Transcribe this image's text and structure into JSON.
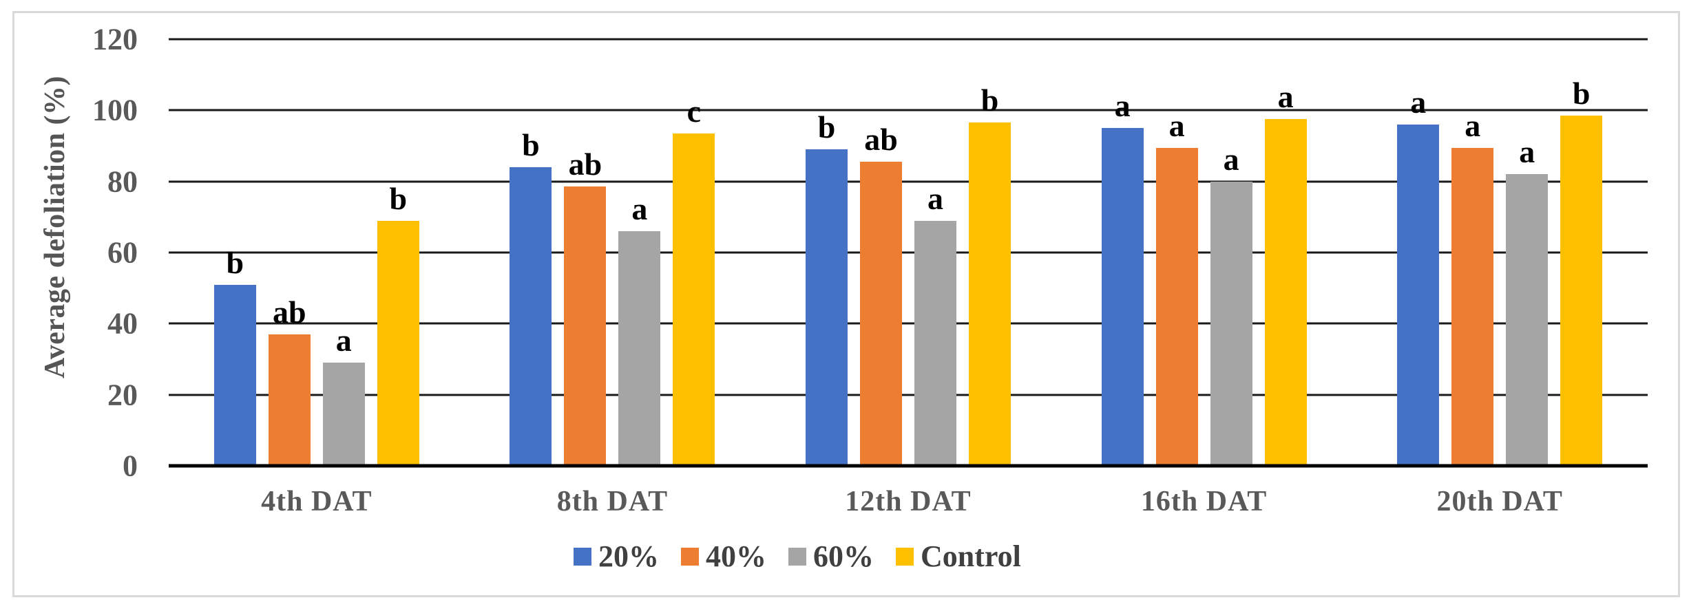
{
  "chart_data": {
    "type": "bar",
    "title": "",
    "ylabel": "Average defoliation (%)",
    "xlabel": "",
    "ylim": [
      0,
      120
    ],
    "yticks": [
      0,
      20,
      40,
      60,
      80,
      100,
      120
    ],
    "grid": "horizontal",
    "legend_position": "bottom-center",
    "categories": [
      "4th DAT",
      "8th DAT",
      "12th DAT",
      "16th DAT",
      "20th DAT"
    ],
    "series": [
      {
        "name": "20%",
        "color": "#4472C4",
        "values": [
          51,
          84,
          89,
          95,
          96
        ],
        "letters": [
          "b",
          "b",
          "b",
          "a",
          "a"
        ]
      },
      {
        "name": "40%",
        "color": "#ED7D31",
        "values": [
          37,
          78.5,
          85.5,
          89.5,
          89.5
        ],
        "letters": [
          "ab",
          "ab",
          "ab",
          "a",
          "a"
        ]
      },
      {
        "name": "60%",
        "color": "#A5A5A5",
        "values": [
          29,
          66,
          69,
          80,
          82
        ],
        "letters": [
          "a",
          "a",
          "a",
          "a",
          "a"
        ]
      },
      {
        "name": "Control",
        "color": "#FFC000",
        "values": [
          69,
          93.5,
          96.5,
          97.5,
          98.5
        ],
        "letters": [
          "b",
          "c",
          "b",
          "a",
          "b"
        ]
      }
    ],
    "axis_text_color": "#595959",
    "letter_text_color": "#000000",
    "gridline_color": "#1a1a1a"
  }
}
